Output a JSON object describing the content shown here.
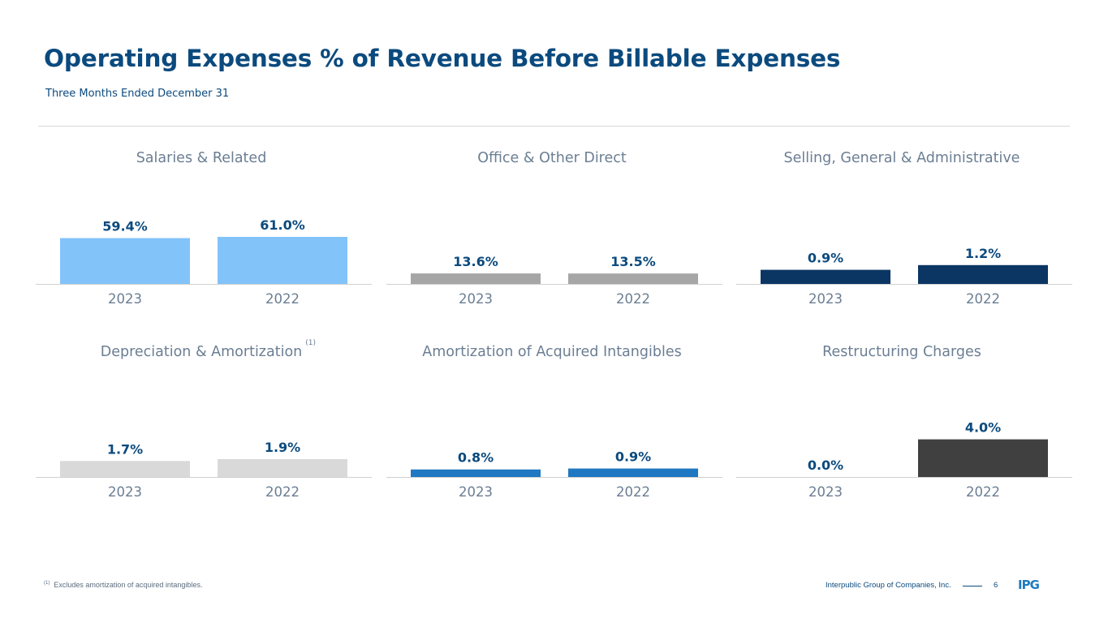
{
  "header": {
    "title": "Operating Expenses % of Revenue Before Billable Expenses",
    "subtitle": "Three Months Ended December 31"
  },
  "chart_data": [
    {
      "type": "bar",
      "title": "Salaries & Related",
      "footnote_ref": "",
      "categories": [
        "2023",
        "2022"
      ],
      "values": [
        59.4,
        61.0
      ],
      "labels": [
        "59.4%",
        "61.0%"
      ],
      "color": "#82c3fa",
      "label_color": "#0b4a7e",
      "ylim": [
        0,
        61
      ]
    },
    {
      "type": "bar",
      "title": "Office & Other Direct",
      "footnote_ref": "",
      "categories": [
        "2023",
        "2022"
      ],
      "values": [
        13.6,
        13.5
      ],
      "labels": [
        "13.6%",
        "13.5%"
      ],
      "color": "#a6a6a6",
      "label_color": "#0b4a7e",
      "ylim": [
        0,
        61
      ]
    },
    {
      "type": "bar",
      "title": "Selling, General & Administrative",
      "footnote_ref": "",
      "categories": [
        "2023",
        "2022"
      ],
      "values": [
        0.9,
        1.2
      ],
      "labels": [
        "0.9%",
        "1.2%"
      ],
      "color": "#0b3563",
      "label_color": "#0b4a7e",
      "ylim": [
        0,
        3
      ]
    },
    {
      "type": "bar",
      "title": "Depreciation & Amortization",
      "footnote_ref": "(1)",
      "categories": [
        "2023",
        "2022"
      ],
      "values": [
        1.7,
        1.9
      ],
      "labels": [
        "1.7%",
        "1.9%"
      ],
      "color": "#d9d9d9",
      "label_color": "#0b4a7e",
      "ylim": [
        0,
        5
      ]
    },
    {
      "type": "bar",
      "title": "Amortization of Acquired Intangibles",
      "footnote_ref": "",
      "categories": [
        "2023",
        "2022"
      ],
      "values": [
        0.8,
        0.9
      ],
      "labels": [
        "0.8%",
        "0.9%"
      ],
      "color": "#1f78c1",
      "label_color": "#0b4a7e",
      "ylim": [
        0,
        5
      ]
    },
    {
      "type": "bar",
      "title": "Restructuring Charges",
      "footnote_ref": "",
      "categories": [
        "2023",
        "2022"
      ],
      "values": [
        0.0,
        4.0
      ],
      "labels": [
        "0.0%",
        "4.0%"
      ],
      "color": "#404040",
      "label_color": "#0b4a7e",
      "ylim": [
        0,
        5
      ]
    }
  ],
  "footer": {
    "footnote_mark": "(1)",
    "footnote_text": "Excludes amortization of acquired intangibles.",
    "company": "Interpublic Group of Companies, Inc.",
    "page_number": "6",
    "logo_text": "IPG"
  }
}
